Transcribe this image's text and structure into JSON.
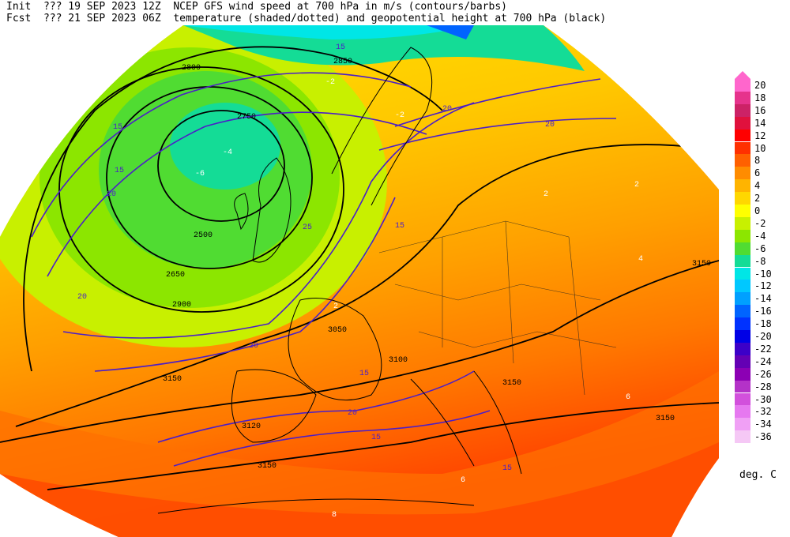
{
  "header": {
    "init_prefix": "Init",
    "init_qualifier": "???",
    "init_time": "19 SEP 2023 12Z",
    "fcst_prefix": "Fcst",
    "fcst_qualifier": "???",
    "fcst_time": "21 SEP 2023 06Z",
    "line1_title": "NCEP GFS wind speed at 700 hPa in m/s (contours/barbs)",
    "line2_title": "temperature (shaded/dotted) and geopotential height at 700 hPa (black)"
  },
  "colorbar": {
    "units": "deg. C",
    "levels": [
      {
        "label": "20",
        "color": "#ff66cc"
      },
      {
        "label": "18",
        "color": "#e6338c"
      },
      {
        "label": "16",
        "color": "#cc2266"
      },
      {
        "label": "14",
        "color": "#e0113d"
      },
      {
        "label": "12",
        "color": "#ff0000"
      },
      {
        "label": "10",
        "color": "#ff3000"
      },
      {
        "label": "8",
        "color": "#ff6000"
      },
      {
        "label": "6",
        "color": "#ff8c00"
      },
      {
        "label": "4",
        "color": "#ffb400"
      },
      {
        "label": "2",
        "color": "#ffd700"
      },
      {
        "label": "0",
        "color": "#ffff00"
      },
      {
        "label": "-2",
        "color": "#c8f000"
      },
      {
        "label": "-4",
        "color": "#8ce600"
      },
      {
        "label": "-6",
        "color": "#50dc32"
      },
      {
        "label": "-8",
        "color": "#14dc96"
      },
      {
        "label": "-10",
        "color": "#00e6e6"
      },
      {
        "label": "-12",
        "color": "#00c8ff"
      },
      {
        "label": "-14",
        "color": "#00a0ff"
      },
      {
        "label": "-16",
        "color": "#0064ff"
      },
      {
        "label": "-18",
        "color": "#0032ff"
      },
      {
        "label": "-20",
        "color": "#0000e6"
      },
      {
        "label": "-22",
        "color": "#3c00c8"
      },
      {
        "label": "-24",
        "color": "#6400b4"
      },
      {
        "label": "-26",
        "color": "#8c00b4"
      },
      {
        "label": "-28",
        "color": "#b432c8"
      },
      {
        "label": "-30",
        "color": "#d250dc"
      },
      {
        "label": "-32",
        "color": "#e678f0"
      },
      {
        "label": "-34",
        "color": "#f0a0f5"
      },
      {
        "label": "-36",
        "color": "#f5c8f5"
      }
    ]
  },
  "map_labels": {
    "height_contours": [
      "2500",
      "2650",
      "2750",
      "2800",
      "2850",
      "2900",
      "3050",
      "3100",
      "3120",
      "3150",
      "3150",
      "3150",
      "3150",
      "3150"
    ],
    "wind_contours": [
      "15",
      "15",
      "15",
      "20",
      "20",
      "20",
      "20",
      "25",
      "15",
      "20",
      "15",
      "15",
      "15",
      "20"
    ],
    "temperature": [
      "-4",
      "-2",
      "2",
      "2",
      "4",
      "2",
      "6",
      "8",
      "6",
      "-6",
      "-2"
    ]
  },
  "colors": {
    "height_contour": "#000000",
    "wind_contour": "#4b1ec8",
    "coast": "#000000",
    "borders": "#202020"
  }
}
